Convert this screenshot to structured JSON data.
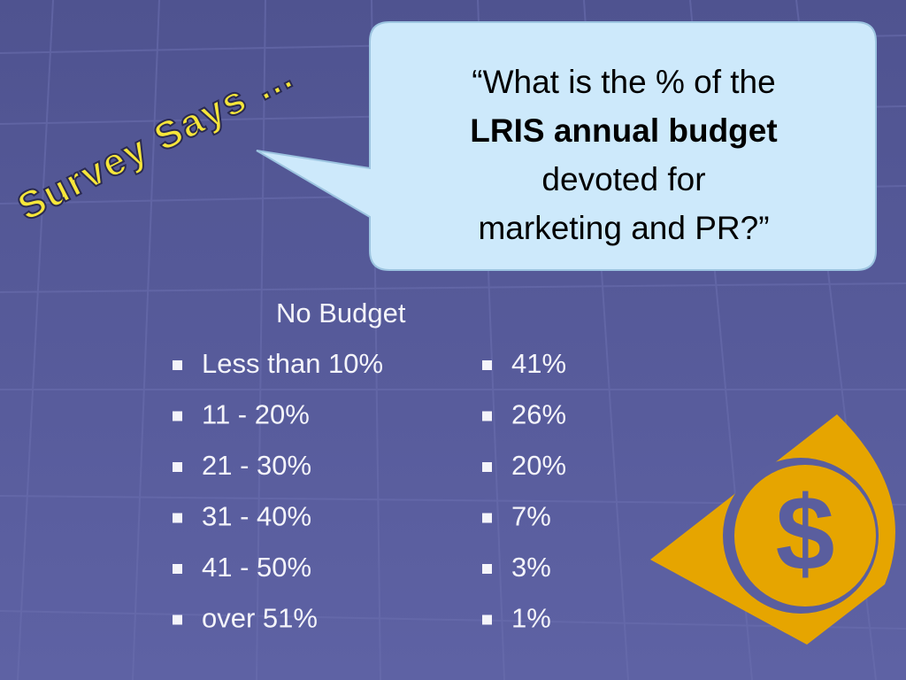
{
  "wordart": "Survey  Says …",
  "bubble": {
    "lines": [
      "“What is the % of the",
      "LRIS annual budget",
      "devoted for",
      "marketing and PR?”"
    ]
  },
  "left_list": {
    "heading": "No Budget",
    "items": [
      "Less than 10%",
      "11 - 20%",
      "21 - 30%",
      "31 - 40%",
      "41 - 50%",
      "over 51%"
    ]
  },
  "right_list": {
    "items": [
      "41%",
      "26%",
      "20%",
      "7%",
      "3%",
      "1%"
    ]
  },
  "dollar_icon": "$"
}
